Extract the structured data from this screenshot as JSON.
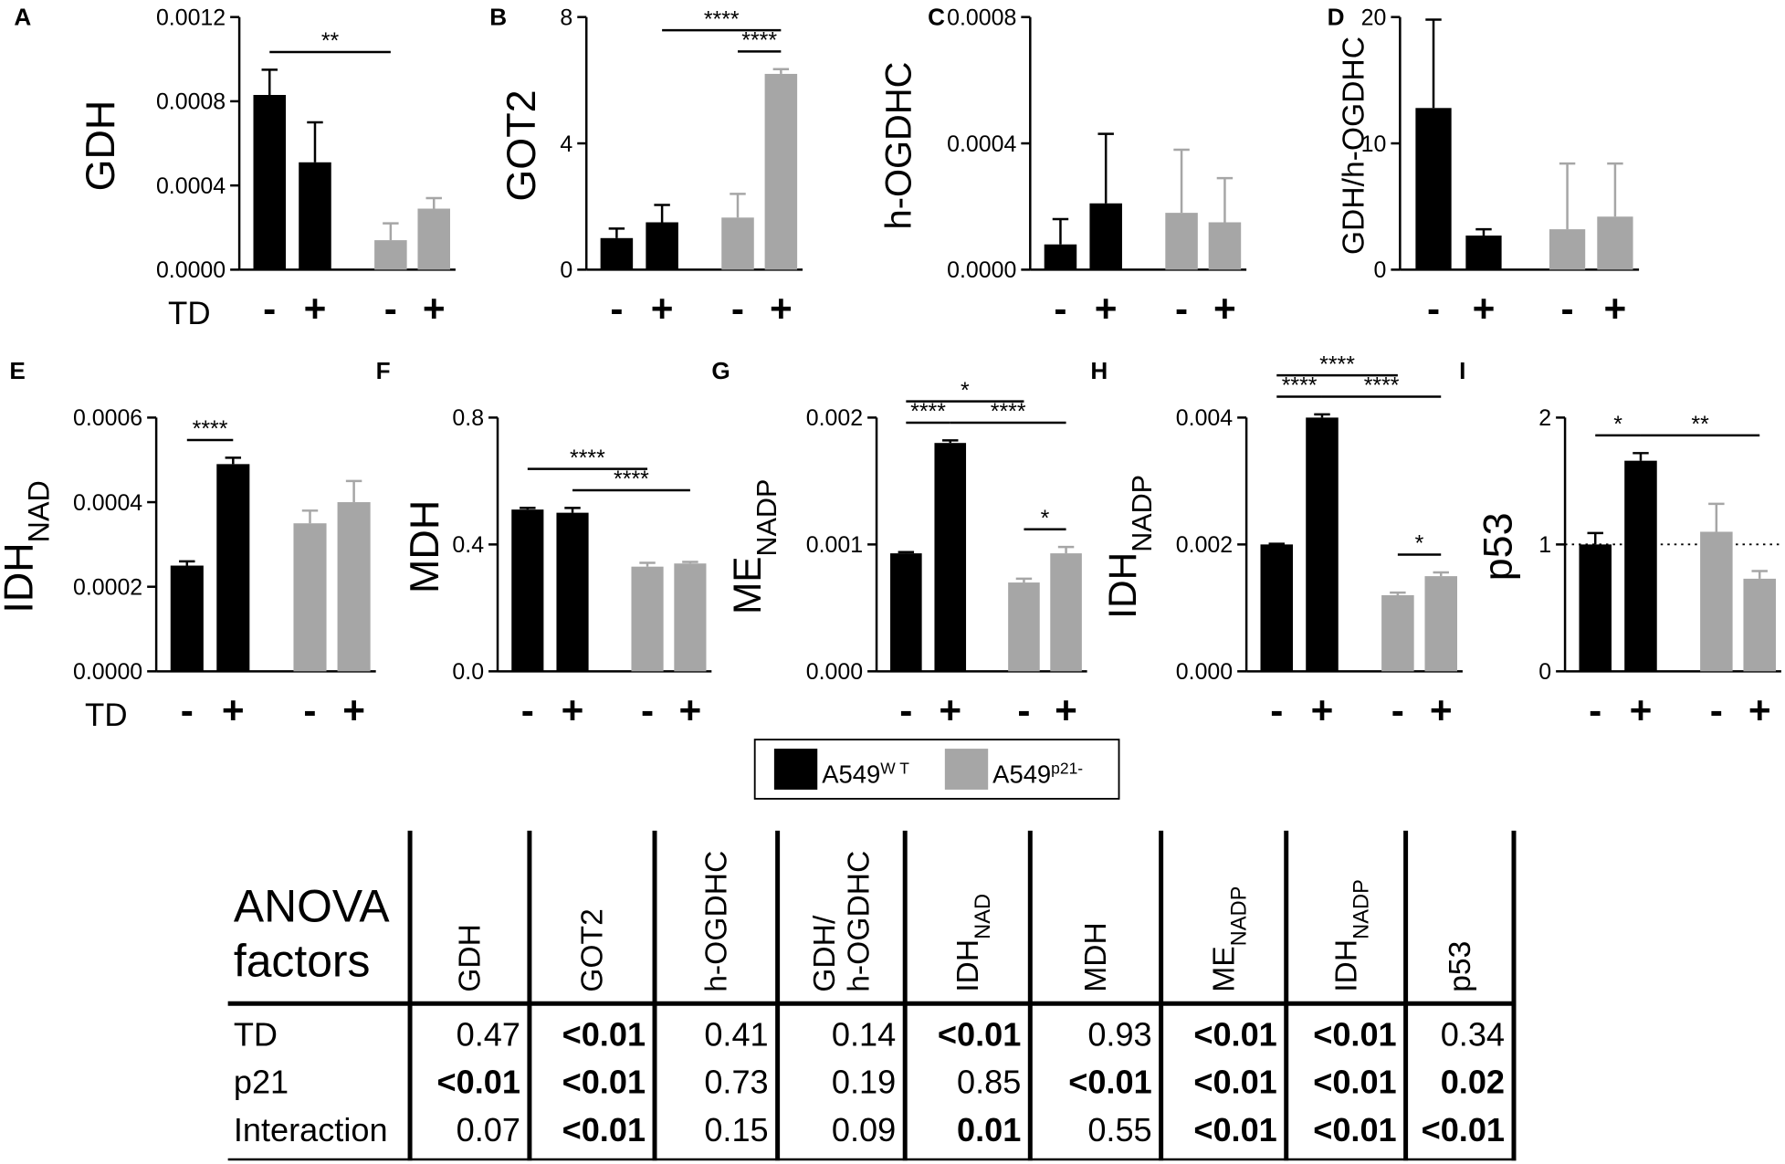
{
  "chart_data": [
    {
      "type": "bar",
      "panel": "A",
      "ylabel": "GDH",
      "x_label": "TD",
      "categories": [
        "-",
        "+",
        "-",
        "+"
      ],
      "values": [
        0.00083,
        0.00051,
        0.00014,
        0.00029
      ],
      "errors": [
        0.00012,
        0.00019,
        8e-05,
        5e-05
      ],
      "colors": [
        "#000000",
        "#000000",
        "#a6a6a6",
        "#a6a6a6"
      ],
      "ylim": [
        0,
        0.0012
      ],
      "yticks": [
        {
          "value": 0,
          "label": "0.0000"
        },
        {
          "value": 0.0004,
          "label": "0.0004"
        },
        {
          "value": 0.0008,
          "label": "0.0008"
        },
        {
          "value": 0.0012,
          "label": "0.0012"
        }
      ],
      "brackets": [
        {
          "from": 0,
          "to": 2,
          "label": "**"
        }
      ]
    },
    {
      "type": "bar",
      "panel": "B",
      "ylabel": "GOT2",
      "categories": [
        "-",
        "+",
        "-",
        "+"
      ],
      "values": [
        1.0,
        1.5,
        1.65,
        6.2
      ],
      "errors": [
        0.3,
        0.55,
        0.75,
        0.15
      ],
      "colors": [
        "#000000",
        "#000000",
        "#a6a6a6",
        "#a6a6a6"
      ],
      "ylim": [
        0,
        8
      ],
      "yticks": [
        0,
        4,
        8
      ],
      "brackets": [
        {
          "from": 2,
          "to": 3,
          "label": "****"
        },
        {
          "from": 1,
          "to": 3,
          "label": "****"
        }
      ]
    },
    {
      "type": "bar",
      "panel": "C",
      "ylabel": "h-OGDHC",
      "categories": [
        "-",
        "+",
        "-",
        "+"
      ],
      "values": [
        8e-05,
        0.00021,
        0.00018,
        0.00015
      ],
      "errors": [
        8e-05,
        0.00022,
        0.0002,
        0.00014
      ],
      "colors": [
        "#000000",
        "#000000",
        "#a6a6a6",
        "#a6a6a6"
      ],
      "ylim": [
        0,
        0.0008
      ],
      "yticks": [
        {
          "value": 0,
          "label": "0.0000"
        },
        {
          "value": 0.0004,
          "label": "0.0004"
        },
        {
          "value": 0.0008,
          "label": "0.0008"
        }
      ]
    },
    {
      "type": "bar",
      "panel": "D",
      "ylabel": "GDH/h-OGDHC",
      "categories": [
        "-",
        "+",
        "-",
        "+"
      ],
      "values": [
        12.8,
        2.7,
        3.2,
        4.2
      ],
      "errors": [
        7.0,
        0.5,
        5.2,
        4.2
      ],
      "colors": [
        "#000000",
        "#000000",
        "#a6a6a6",
        "#a6a6a6"
      ],
      "ylim": [
        0,
        20
      ],
      "yticks": [
        0,
        10,
        20
      ]
    },
    {
      "type": "bar",
      "panel": "E",
      "ylabel": "IDH",
      "ylabel_sub": "NAD",
      "x_label": "TD",
      "categories": [
        "-",
        "+",
        "-",
        "+"
      ],
      "values": [
        0.00025,
        0.00049,
        0.00035,
        0.0004
      ],
      "errors": [
        1e-05,
        1.5e-05,
        3e-05,
        5e-05
      ],
      "colors": [
        "#000000",
        "#000000",
        "#a6a6a6",
        "#a6a6a6"
      ],
      "ylim": [
        0,
        0.0006
      ],
      "yticks": [
        {
          "value": 0,
          "label": "0.0000"
        },
        {
          "value": 0.0002,
          "label": "0.0002"
        },
        {
          "value": 0.0004,
          "label": "0.0004"
        },
        {
          "value": 0.0006,
          "label": "0.0006"
        }
      ],
      "brackets": [
        {
          "from": 0,
          "to": 1,
          "label": "****"
        }
      ]
    },
    {
      "type": "bar",
      "panel": "F",
      "ylabel": "MDH",
      "categories": [
        "-",
        "+",
        "-",
        "+"
      ],
      "values": [
        0.51,
        0.5,
        0.33,
        0.34
      ],
      "errors": [
        0.005,
        0.015,
        0.012,
        0.005
      ],
      "colors": [
        "#000000",
        "#000000",
        "#a6a6a6",
        "#a6a6a6"
      ],
      "ylim": [
        0,
        0.8
      ],
      "yticks": [
        {
          "value": 0,
          "label": "0.0"
        },
        {
          "value": 0.4,
          "label": "0.4"
        },
        {
          "value": 0.8,
          "label": "0.8"
        }
      ],
      "brackets": [
        {
          "from": 1,
          "to": 3,
          "label": "****"
        },
        {
          "from": 0,
          "to": 2,
          "label": "****"
        }
      ]
    },
    {
      "type": "bar",
      "panel": "G",
      "ylabel": "ME",
      "ylabel_sub": "NADP",
      "categories": [
        "-",
        "+",
        "-",
        "+"
      ],
      "values": [
        0.00093,
        0.0018,
        0.0007,
        0.00093
      ],
      "errors": [
        1e-05,
        2e-05,
        3e-05,
        5e-05
      ],
      "colors": [
        "#000000",
        "#000000",
        "#a6a6a6",
        "#a6a6a6"
      ],
      "ylim": [
        0,
        0.002
      ],
      "yticks": [
        {
          "value": 0,
          "label": "0.000"
        },
        {
          "value": 0.001,
          "label": "0.001"
        },
        {
          "value": 0.002,
          "label": "0.002"
        }
      ],
      "brackets": [
        {
          "from": 2,
          "to": 3,
          "label": "*"
        },
        {
          "from": 0,
          "to": 1,
          "label": "****"
        },
        {
          "from": 1,
          "to": 3,
          "label": "****"
        },
        {
          "from": 0,
          "to": 2,
          "label": "*"
        }
      ]
    },
    {
      "type": "bar",
      "panel": "H",
      "ylabel": "IDH",
      "ylabel_sub": "NADP",
      "categories": [
        "-",
        "+",
        "-",
        "+"
      ],
      "values": [
        0.002,
        0.004,
        0.0012,
        0.0015
      ],
      "errors": [
        1e-05,
        5e-05,
        4e-05,
        6e-05
      ],
      "colors": [
        "#000000",
        "#000000",
        "#a6a6a6",
        "#a6a6a6"
      ],
      "ylim": [
        0,
        0.004
      ],
      "yticks": [
        {
          "value": 0,
          "label": "0.000"
        },
        {
          "value": 0.002,
          "label": "0.002"
        },
        {
          "value": 0.004,
          "label": "0.004"
        }
      ],
      "brackets": [
        {
          "from": 2,
          "to": 3,
          "label": "*"
        },
        {
          "from": 0,
          "to": 1,
          "label": "****"
        },
        {
          "from": 1,
          "to": 3,
          "label": "****"
        },
        {
          "from": 0,
          "to": 2,
          "label": "****"
        }
      ]
    },
    {
      "type": "bar",
      "panel": "I",
      "ylabel": "p53",
      "categories": [
        "-",
        "+",
        "-",
        "+"
      ],
      "values": [
        1.0,
        1.66,
        1.1,
        0.73
      ],
      "errors": [
        0.09,
        0.06,
        0.22,
        0.06
      ],
      "colors": [
        "#000000",
        "#000000",
        "#a6a6a6",
        "#a6a6a6"
      ],
      "ylim": [
        0,
        2
      ],
      "yticks": [
        0,
        1,
        2
      ],
      "refline": 1,
      "brackets": [
        {
          "from": 0,
          "to": 1,
          "label": "*"
        },
        {
          "from": 1,
          "to": 3,
          "label": "**"
        }
      ]
    }
  ],
  "legend": [
    {
      "name": "A549",
      "sup": "W T",
      "color": "#000000"
    },
    {
      "name": "A549",
      "sup": "p21-",
      "color": "#a6a6a6"
    }
  ],
  "table": {
    "title": [
      "ANOVA",
      "factors"
    ],
    "columns": [
      {
        "text": "GDH"
      },
      {
        "text": "GOT2"
      },
      {
        "text": "h-OGDHC"
      },
      {
        "text": "GDH/",
        "text2": "h-OGDHC"
      },
      {
        "text": "IDH",
        "sub": "NAD"
      },
      {
        "text": "MDH"
      },
      {
        "text": "ME",
        "sub": "NADP"
      },
      {
        "text": "IDH",
        "sub": "NADP"
      },
      {
        "text": "p53"
      }
    ],
    "rows": [
      {
        "label": "TD",
        "cells": [
          "0.47",
          "<0.01",
          "0.41",
          "0.14",
          "<0.01",
          "0.93",
          "<0.01",
          "<0.01",
          "0.34"
        ],
        "bold": [
          false,
          true,
          false,
          false,
          true,
          false,
          true,
          true,
          false
        ]
      },
      {
        "label": "p21",
        "cells": [
          "<0.01",
          "<0.01",
          "0.73",
          "0.19",
          "0.85",
          "<0.01",
          "<0.01",
          "<0.01",
          "0.02"
        ],
        "bold": [
          true,
          true,
          false,
          false,
          false,
          true,
          true,
          true,
          true
        ]
      },
      {
        "label": "Interaction",
        "cells": [
          "0.07",
          "<0.01",
          "0.15",
          "0.09",
          "0.01",
          "0.55",
          "<0.01",
          "<0.01",
          "<0.01"
        ],
        "bold": [
          false,
          true,
          false,
          false,
          true,
          false,
          true,
          true,
          true
        ]
      }
    ]
  }
}
